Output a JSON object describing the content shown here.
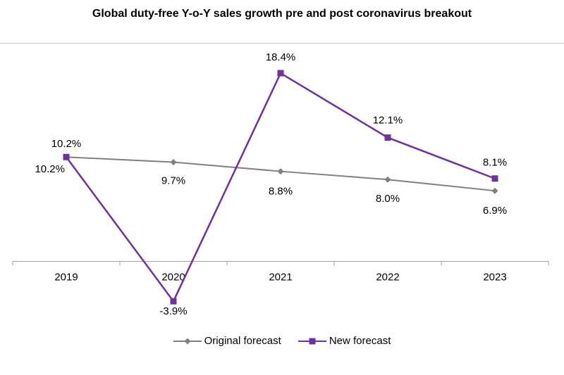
{
  "chart_data": {
    "type": "line",
    "title": "Global duty-free Y-o-Y sales growth pre and post coronavirus breakout",
    "categories": [
      "2019",
      "2020",
      "2021",
      "2022",
      "2023"
    ],
    "series": [
      {
        "name": "Original forecast",
        "values": [
          10.2,
          9.7,
          8.8,
          8.0,
          6.9
        ],
        "labels": [
          "10.2%",
          "9.7%",
          "8.8%",
          "8.0%",
          "6.9%"
        ],
        "color": "#808080",
        "marker": "diamond"
      },
      {
        "name": "New forecast",
        "values": [
          10.2,
          -3.9,
          18.4,
          12.1,
          8.1
        ],
        "labels": [
          "10.2%",
          "-3.9%",
          "18.4%",
          "12.1%",
          "8.1%"
        ],
        "color": "#7030a0",
        "marker": "square"
      }
    ],
    "ylim": [
      -5,
      20
    ],
    "grid": false,
    "legend_position": "bottom"
  }
}
